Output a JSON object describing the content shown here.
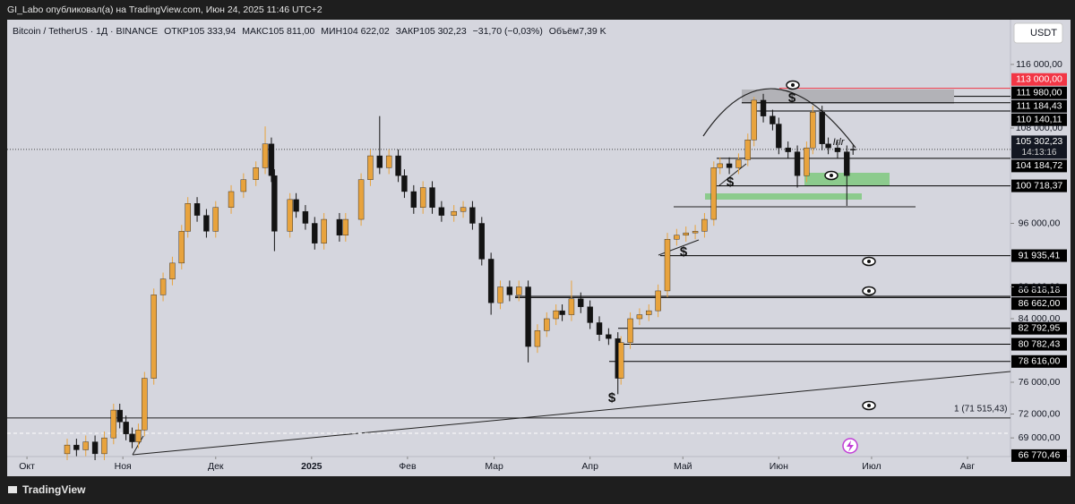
{
  "page": {
    "publisher_line": "GI_Labo опубликовал(а) на TradingView.com, Июн 24, 2025 11:46 UTC+2",
    "legend": {
      "symbol": "Bitcoin / TetherUS · 1Д · BINANCE",
      "open_label": "ОТКР",
      "open": "105 333,94",
      "high_label": "МАКС",
      "high": "105 811,00",
      "low_label": "МИН",
      "low": "104 622,02",
      "close_label": "ЗАКР",
      "close": "105 302,23",
      "change": "−31,70 (−0,03%)",
      "volume_label": "Объём",
      "volume": "7,39 K"
    },
    "currency_button": "USDT",
    "footer": "TradingView"
  },
  "chart_data": {
    "type": "candlestick",
    "up_color": "#e8a33d",
    "down_color": "#131313",
    "x": [
      13,
      16,
      19,
      22,
      25,
      28,
      30,
      32,
      34,
      36,
      38,
      41,
      44,
      47,
      50,
      52,
      55,
      58,
      61,
      66,
      70,
      74,
      77,
      79,
      80,
      85,
      87,
      90,
      93,
      96,
      101,
      103,
      108,
      111,
      114,
      117,
      120,
      122,
      125,
      128,
      131,
      134,
      138,
      141,
      144,
      147,
      150,
      153,
      156,
      159,
      162,
      165,
      168,
      171,
      173,
      176,
      179,
      182,
      185,
      188,
      191,
      192,
      195,
      198,
      201,
      204,
      207,
      210,
      213,
      216,
      219,
      222,
      224,
      227,
      230,
      233,
      235,
      238,
      241,
      243,
      246,
      249,
      252,
      254,
      257,
      259,
      262,
      265,
      267
    ],
    "open": [
      67000,
      68100,
      67500,
      68500,
      67000,
      69000,
      72500,
      71000,
      69500,
      68500,
      70000,
      76500,
      87000,
      89000,
      91000,
      95000,
      98500,
      97000,
      95000,
      98000,
      100000,
      101500,
      103000,
      106000,
      102000,
      95000,
      99000,
      97500,
      96000,
      93500,
      96500,
      94500,
      96500,
      101500,
      104500,
      103000,
      104500,
      102000,
      100000,
      98000,
      100500,
      98000,
      97000,
      97500,
      98000,
      96000,
      91500,
      86000,
      88000,
      87000,
      88000,
      80500,
      82500,
      84000,
      85000,
      84500,
      86500,
      85500,
      83500,
      82000,
      81500,
      76500,
      81000,
      84000,
      84500,
      85000,
      87500,
      94000,
      94500,
      94800,
      95000,
      96500,
      103000,
      103500,
      103000,
      104000,
      106500,
      111500,
      109500,
      108500,
      105500,
      105000,
      102000,
      105500,
      110000,
      106000,
      105500,
      105000,
      105333.94
    ],
    "high": [
      68900,
      68900,
      69300,
      69300,
      69800,
      73300,
      73300,
      71800,
      70300,
      70800,
      77300,
      87800,
      89800,
      91800,
      95800,
      99300,
      99300,
      97800,
      98800,
      100800,
      102300,
      103800,
      108200,
      106800,
      102800,
      99800,
      99800,
      98300,
      96800,
      97300,
      97300,
      97300,
      102300,
      105300,
      109500,
      105300,
      105300,
      102800,
      100800,
      101300,
      101300,
      98800,
      98300,
      98800,
      98800,
      96800,
      92300,
      88800,
      88800,
      88800,
      88800,
      83300,
      84800,
      85800,
      85800,
      88800,
      87300,
      86300,
      84300,
      82800,
      82300,
      81800,
      84800,
      85300,
      85800,
      88300,
      94800,
      95300,
      95600,
      95800,
      97300,
      103800,
      104300,
      104300,
      104800,
      107300,
      111900,
      112300,
      110300,
      109300,
      106300,
      105800,
      106300,
      110800,
      110800,
      106800,
      106300,
      105800,
      105811
    ],
    "low": [
      66200,
      66700,
      66700,
      66200,
      66200,
      68200,
      70200,
      68700,
      67700,
      67700,
      69200,
      75700,
      86200,
      88200,
      90200,
      94200,
      96200,
      94200,
      94200,
      97200,
      99200,
      100700,
      102200,
      101200,
      92500,
      94200,
      96700,
      95200,
      92700,
      92700,
      93700,
      93700,
      95700,
      100700,
      102200,
      102200,
      101200,
      99200,
      97200,
      97200,
      97200,
      96200,
      96200,
      96700,
      95200,
      90700,
      84500,
      85200,
      86200,
      86200,
      78500,
      79700,
      81700,
      83200,
      83700,
      83700,
      84700,
      82700,
      81200,
      80700,
      74500,
      75700,
      80200,
      83200,
      83700,
      84200,
      86700,
      93200,
      93700,
      94000,
      94200,
      95700,
      102200,
      102200,
      102200,
      103200,
      105700,
      108700,
      107700,
      104700,
      104200,
      100500,
      101200,
      104700,
      105200,
      104700,
      104200,
      98200,
      104622.02
    ],
    "close": [
      68100,
      67500,
      68500,
      67000,
      69000,
      72500,
      71000,
      69500,
      68500,
      70000,
      76500,
      87000,
      89000,
      91000,
      95000,
      98500,
      97000,
      95000,
      98000,
      100000,
      101500,
      103000,
      106000,
      102000,
      95000,
      99000,
      97500,
      96000,
      93500,
      96500,
      94500,
      96500,
      101500,
      104500,
      103000,
      104500,
      102000,
      100000,
      98000,
      100500,
      98000,
      97000,
      97500,
      98000,
      96000,
      91500,
      86000,
      88000,
      87000,
      88000,
      80500,
      82500,
      84000,
      85000,
      84500,
      86500,
      85500,
      83500,
      82000,
      81500,
      76500,
      81000,
      84000,
      84500,
      85000,
      87500,
      94000,
      94500,
      94800,
      95000,
      96500,
      103000,
      103500,
      103000,
      104000,
      106500,
      111500,
      109500,
      108500,
      105500,
      105000,
      102000,
      105500,
      110000,
      106000,
      105500,
      105000,
      102000,
      105302.23
    ],
    "xlim": [
      -6.4,
      317.9
    ],
    "xticks": [
      {
        "value": 0,
        "label": "Окт"
      },
      {
        "value": 31,
        "label": "Ноя"
      },
      {
        "value": 61,
        "label": "Дек"
      },
      {
        "value": 92,
        "label": "2025"
      },
      {
        "value": 123,
        "label": "Фев"
      },
      {
        "value": 151,
        "label": "Мар"
      },
      {
        "value": 182,
        "label": "Апр"
      },
      {
        "value": 212,
        "label": "Май"
      },
      {
        "value": 243,
        "label": "Июн"
      },
      {
        "value": 273,
        "label": "Июл"
      },
      {
        "value": 304,
        "label": "Авг"
      }
    ],
    "ylim": [
      66650,
      121630
    ],
    "yticks": [
      {
        "value": 116000,
        "label": "116 000,00"
      },
      {
        "value": 108000,
        "label": "108 000,00"
      },
      {
        "value": 96000,
        "label": "96 000,00"
      },
      {
        "value": 88000,
        "label": "88 000,00"
      },
      {
        "value": 84000,
        "label": "84 000,00"
      },
      {
        "value": 76000,
        "label": "76 000,00"
      },
      {
        "value": 72000,
        "label": "72 000,00"
      },
      {
        "value": 69000,
        "label": "69 000,00"
      }
    ],
    "current_price": {
      "value": 105302.23,
      "label": "105 302,23",
      "timer": "14:13:16"
    },
    "levels": [
      {
        "value": 113000,
        "label": "113 000,00",
        "color": "#f23645"
      },
      {
        "value": 111980,
        "label": "111 980,00",
        "color": "#000000"
      },
      {
        "value": 111184.43,
        "label": "111 184,43",
        "color": "#000000"
      },
      {
        "value": 110140.11,
        "label": "110 140,11",
        "color": "#000000"
      },
      {
        "value": 104184.72,
        "label": "104 184,72",
        "color": "#000000"
      },
      {
        "value": 100718.37,
        "label": "100 718,37",
        "color": "#000000"
      },
      {
        "value": 91935.41,
        "label": "91 935,41",
        "color": "#000000"
      },
      {
        "value": 86818.18,
        "label": "86 818,18",
        "color": "#000000"
      },
      {
        "value": 86662,
        "label": "86 662,00",
        "color": "#000000"
      },
      {
        "value": 82792.95,
        "label": "82 792,95",
        "color": "#000000"
      },
      {
        "value": 80782.43,
        "label": "80 782,43",
        "color": "#000000"
      },
      {
        "value": 78616,
        "label": "78 616,00",
        "color": "#000000"
      },
      {
        "value": 66770.46,
        "label": "66 770,46",
        "color": "#000000"
      }
    ],
    "alert_line": {
      "value": 71515.43,
      "label": "1 (71 515,43)"
    },
    "annotations": [
      "$",
      "$",
      "$",
      "$",
      "Irlr"
    ]
  }
}
